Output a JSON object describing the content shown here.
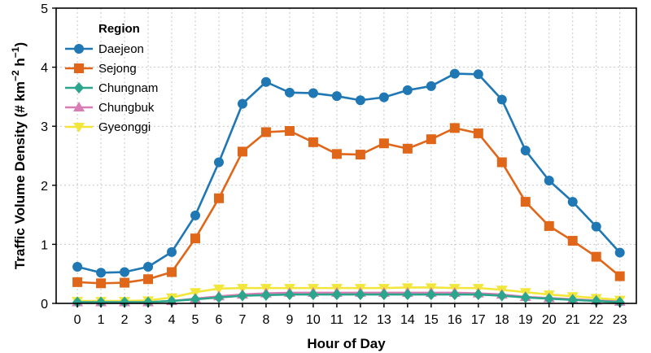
{
  "chart_data": {
    "type": "line",
    "xlabel": "Hour of Day",
    "ylabel_main": "Traffic Volume Density (# km",
    "ylabel_sup1": "−2",
    "ylabel_mid": " h",
    "ylabel_sup2": "−1",
    "ylabel_end": ")",
    "xlim": [
      -0.9,
      23.7
    ],
    "ylim": [
      0,
      5
    ],
    "yticks": [
      0,
      1,
      2,
      3,
      4,
      5
    ],
    "x": [
      0,
      1,
      2,
      3,
      4,
      5,
      6,
      7,
      8,
      9,
      10,
      11,
      12,
      13,
      14,
      15,
      16,
      17,
      18,
      19,
      20,
      21,
      22,
      23
    ],
    "grid": true,
    "legend": {
      "title": "Region",
      "position": "upper-left"
    },
    "series": [
      {
        "name": "Daejeon",
        "color": "#1f77b4",
        "marker": "circle",
        "values": [
          0.62,
          0.52,
          0.53,
          0.62,
          0.87,
          1.49,
          2.39,
          3.38,
          3.75,
          3.57,
          3.56,
          3.51,
          3.44,
          3.49,
          3.61,
          3.68,
          3.89,
          3.88,
          3.45,
          2.59,
          2.08,
          1.72,
          1.3,
          0.86
        ]
      },
      {
        "name": "Sejong",
        "color": "#e0661a",
        "marker": "square",
        "values": [
          0.36,
          0.34,
          0.35,
          0.41,
          0.53,
          1.1,
          1.78,
          2.57,
          2.9,
          2.92,
          2.73,
          2.53,
          2.52,
          2.71,
          2.62,
          2.78,
          2.97,
          2.88,
          2.39,
          1.72,
          1.31,
          1.06,
          0.79,
          0.46
        ]
      },
      {
        "name": "Chungnam",
        "color": "#2ca58d",
        "marker": "diamond",
        "values": [
          0.02,
          0.02,
          0.02,
          0.02,
          0.04,
          0.07,
          0.1,
          0.13,
          0.14,
          0.15,
          0.15,
          0.15,
          0.15,
          0.15,
          0.15,
          0.15,
          0.15,
          0.15,
          0.13,
          0.1,
          0.08,
          0.06,
          0.04,
          0.02
        ]
      },
      {
        "name": "Chungbuk",
        "color": "#d97cb3",
        "marker": "triangle-up",
        "values": [
          0.02,
          0.02,
          0.02,
          0.02,
          0.04,
          0.08,
          0.12,
          0.15,
          0.17,
          0.18,
          0.18,
          0.18,
          0.18,
          0.18,
          0.18,
          0.18,
          0.18,
          0.17,
          0.15,
          0.11,
          0.09,
          0.07,
          0.05,
          0.03
        ]
      },
      {
        "name": "Gyeonggi",
        "color": "#f2e63a",
        "marker": "triangle-down",
        "values": [
          0.04,
          0.04,
          0.04,
          0.05,
          0.1,
          0.19,
          0.25,
          0.26,
          0.26,
          0.26,
          0.26,
          0.26,
          0.26,
          0.26,
          0.27,
          0.27,
          0.26,
          0.26,
          0.23,
          0.19,
          0.15,
          0.12,
          0.09,
          0.06
        ]
      }
    ]
  }
}
